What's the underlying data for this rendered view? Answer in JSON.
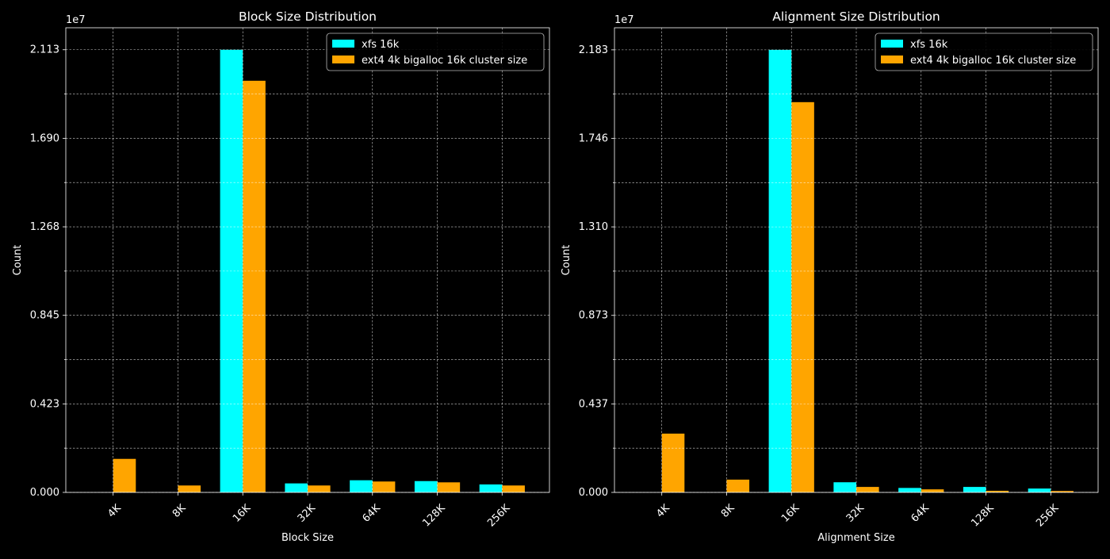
{
  "colors": {
    "background": "#000000",
    "foreground": "#ffffff",
    "grid": "#ffffff",
    "xfs": "#00ffff",
    "ext4": "#ffa500"
  },
  "chart_data": [
    {
      "type": "bar",
      "title": "Block Size Distribution",
      "xlabel": "Block Size",
      "ylabel": "Count",
      "y_offset_label": "1e7",
      "categories": [
        "4K",
        "8K",
        "16K",
        "32K",
        "64K",
        "128K",
        "256K"
      ],
      "series": [
        {
          "name": "xfs 16k",
          "color": "#00ffff",
          "values": [
            0,
            0,
            21130000,
            430000,
            580000,
            540000,
            380000
          ]
        },
        {
          "name": "ext4 4k bigalloc 16k cluster size",
          "color": "#ffa500",
          "values": [
            1600000,
            330000,
            19650000,
            330000,
            520000,
            480000,
            330000
          ]
        }
      ],
      "ylim": [
        0,
        22180000
      ],
      "yticks_labeled": [
        0,
        4226000,
        8452000,
        12678000,
        16904000,
        21130000
      ],
      "ytick_labels": [
        "0.000",
        "0.423",
        "0.845",
        "1.268",
        "1.690",
        "2.113"
      ],
      "yticks_minor": [
        2113000,
        6339000,
        10565000,
        14791000,
        19017000
      ],
      "grid": true,
      "legend": "top-right"
    },
    {
      "type": "bar",
      "title": "Alignment Size Distribution",
      "xlabel": "Alignment Size",
      "ylabel": "Count",
      "y_offset_label": "1e7",
      "categories": [
        "4K",
        "8K",
        "16K",
        "32K",
        "64K",
        "128K",
        "256K"
      ],
      "series": [
        {
          "name": "xfs 16k",
          "color": "#00ffff",
          "values": [
            0,
            0,
            21830000,
            500000,
            220000,
            270000,
            190000
          ]
        },
        {
          "name": "ext4 4k bigalloc 16k cluster size",
          "color": "#ffa500",
          "values": [
            2900000,
            630000,
            19250000,
            270000,
            150000,
            80000,
            70000
          ]
        }
      ],
      "ylim": [
        0,
        22920000
      ],
      "yticks_labeled": [
        0,
        4366000,
        8732000,
        13098000,
        17464000,
        21830000
      ],
      "ytick_labels": [
        "0.000",
        "0.437",
        "0.873",
        "1.310",
        "1.746",
        "2.183"
      ],
      "yticks_minor": [
        2183000,
        6549000,
        10915000,
        15281000,
        19647000
      ],
      "grid": true,
      "legend": "top-right"
    }
  ]
}
